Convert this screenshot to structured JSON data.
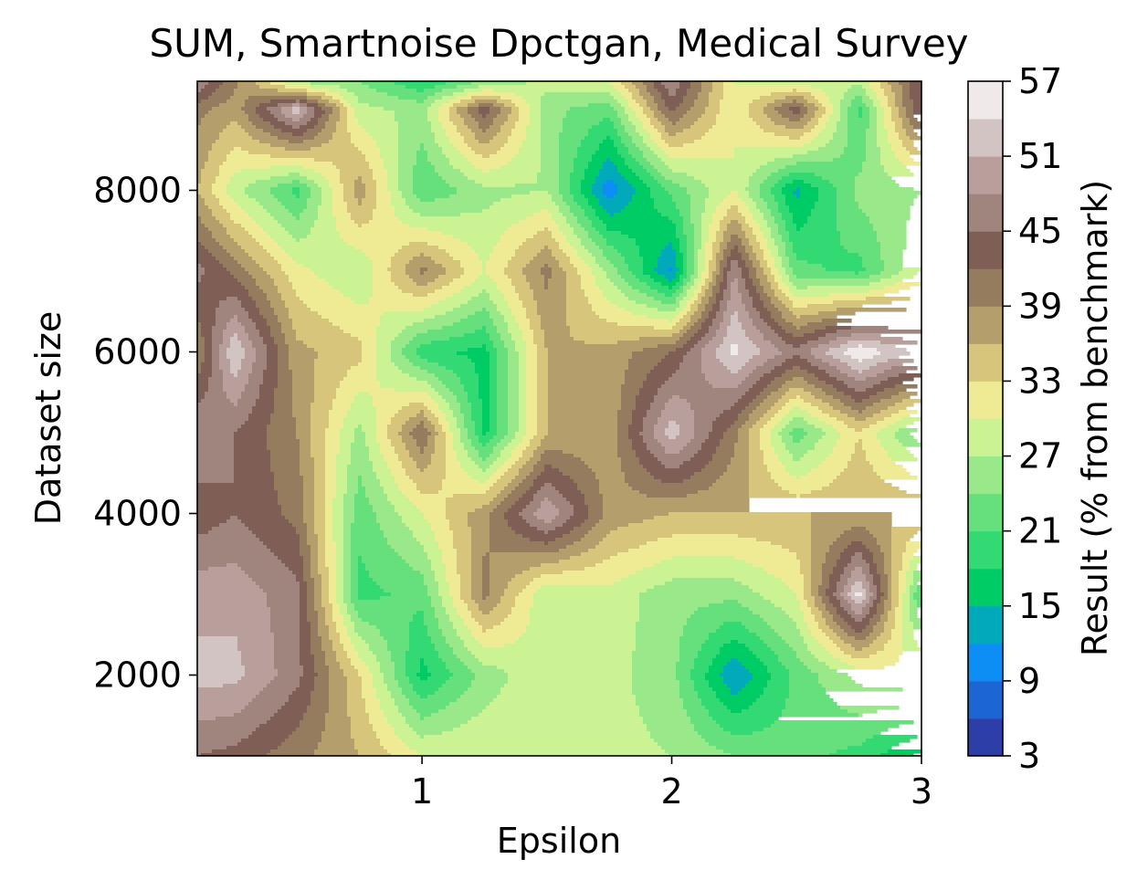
{
  "chart_data": {
    "type": "heatmap",
    "subtype": "filled-contour",
    "title": "SUM, Smartnoise Dpctgan, Medical Survey",
    "xlabel": "Epsilon",
    "ylabel": "Dataset size",
    "colorbar_label": "Result (% from benchmark)",
    "xlim": [
      0.1,
      3.0
    ],
    "ylim": [
      1000,
      9350
    ],
    "x_ticks": [
      1,
      2,
      3
    ],
    "x_tick_labels": [
      "1",
      "2",
      "3"
    ],
    "y_ticks": [
      2000,
      4000,
      6000,
      8000
    ],
    "y_tick_labels": [
      "2000",
      "4000",
      "6000",
      "8000"
    ],
    "levels": [
      3,
      6,
      9,
      12,
      15,
      18,
      21,
      24,
      27,
      30,
      33,
      36,
      39,
      42,
      45,
      48,
      51,
      54,
      57
    ],
    "colorbar_ticks": [
      3,
      9,
      15,
      21,
      27,
      33,
      39,
      45,
      51,
      57
    ],
    "colorbar_tick_labels": [
      "3",
      "9",
      "15",
      "21",
      "27",
      "33",
      "39",
      "45",
      "51",
      "57"
    ],
    "colormap": [
      "#2d3ea8",
      "#1c66d4",
      "#0c8ef5",
      "#00aabb",
      "#00cc66",
      "#33d973",
      "#66e07d",
      "#99e88a",
      "#ccf393",
      "#eeeb94",
      "#d8c57c",
      "#b49e6c",
      "#957c5f",
      "#7e5e55",
      "#a0847e",
      "#b99f9b",
      "#d2c4c2",
      "#efe9e9"
    ],
    "x": [
      0.1,
      0.25,
      0.5,
      0.75,
      1.0,
      1.25,
      1.5,
      1.75,
      2.0,
      2.25,
      2.5,
      2.75,
      3.0
    ],
    "y": [
      1000,
      2000,
      3000,
      4000,
      5000,
      6000,
      7000,
      8000,
      9000,
      9350
    ],
    "z": [
      [
        45,
        44,
        40,
        36,
        30,
        30,
        30,
        28,
        27,
        24,
        22,
        20,
        14
      ],
      [
        52,
        52,
        46,
        33,
        17,
        25,
        30,
        28,
        25,
        12,
        22,
        28,
        30
      ],
      [
        50,
        50,
        46,
        20,
        22,
        40,
        27,
        29,
        25,
        25,
        30,
        55,
        20
      ],
      [
        43,
        45,
        41,
        22,
        30,
        38,
        51,
        38,
        36,
        36,
        36,
        36,
        36
      ],
      [
        48,
        45,
        39,
        26,
        42,
        17,
        36,
        37,
        53,
        40,
        22,
        33,
        22
      ],
      [
        39,
        54,
        37,
        34,
        19,
        17,
        36,
        37,
        42,
        55,
        46,
        57,
        50
      ],
      [
        46,
        41,
        31,
        27,
        40,
        30,
        40,
        26,
        11,
        48,
        22,
        20,
        30
      ],
      [
        36,
        28,
        20,
        38,
        21,
        26,
        27,
        10,
        22,
        30,
        14,
        25,
        27
      ],
      [
        40,
        37,
        53,
        28,
        26,
        44,
        25,
        22,
        43,
        30,
        44,
        20,
        46
      ],
      [
        48,
        40,
        26,
        24,
        18,
        24,
        28,
        30,
        48,
        30,
        28,
        28,
        45
      ]
    ]
  }
}
